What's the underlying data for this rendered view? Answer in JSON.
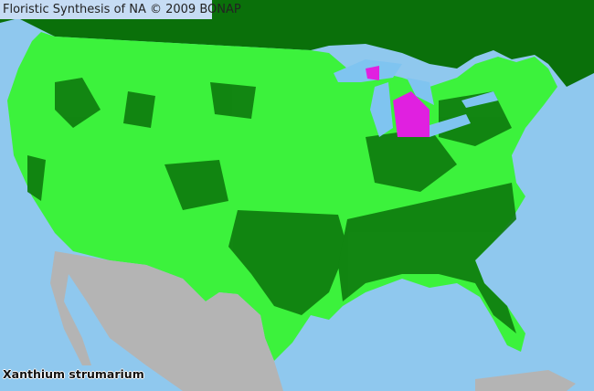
{
  "header": {
    "title": "Floristic Synthesis of NA © 2009 BONAP"
  },
  "map": {
    "species": "Xanthium strumarium",
    "colors": {
      "ocean": "#8fc8ee",
      "canada": "#0a700a",
      "us_present": "#3cf23c",
      "us_dark": "#0d7a0d",
      "mexico": "#b4b4b4",
      "lakes": "#7fc4f0",
      "magenta": "#e020e0"
    }
  }
}
